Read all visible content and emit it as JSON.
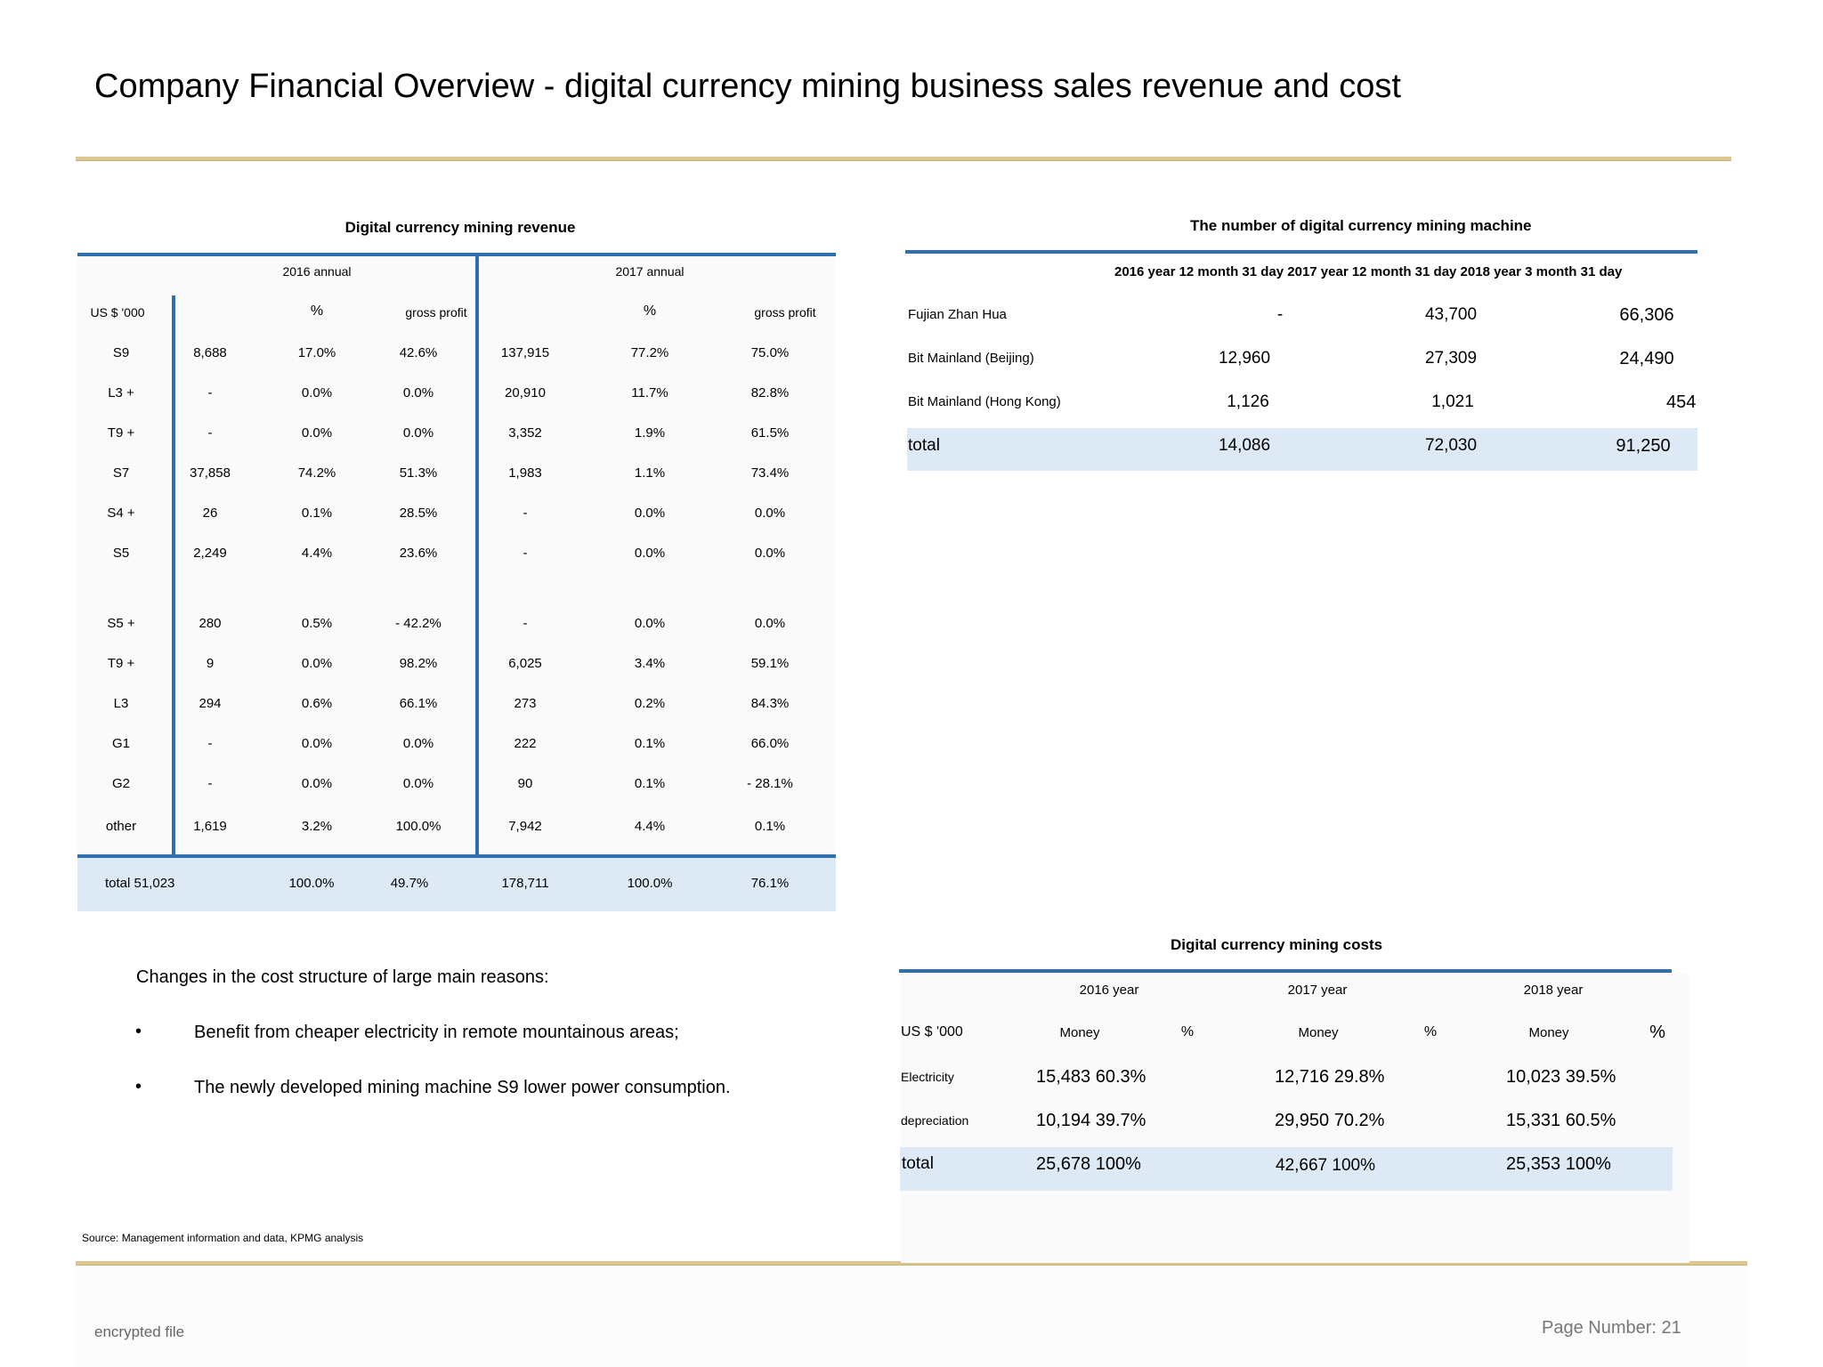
{
  "title": "Company Financial Overview - digital currency mining business sales revenue and cost",
  "revenue_table": {
    "title": "Digital currency mining revenue",
    "period_2016": "2016 annual",
    "period_2017": "2017 annual",
    "unit": "US $ '000",
    "pct_2016": "%",
    "gp_2016": "gross profit",
    "pct_2017": "%",
    "gp_2017": "gross profit",
    "rows": [
      {
        "model": "S9",
        "v16": "8,688",
        "p16": "17.0%",
        "g16": "42.6%",
        "v17": "137,915",
        "p17": "77.2%",
        "g17": "75.0%"
      },
      {
        "model": "L3 +",
        "v16": "-",
        "p16": "0.0%",
        "g16": "0.0%",
        "v17": "20,910",
        "p17": "11.7%",
        "g17": "82.8%"
      },
      {
        "model": "T9 +",
        "v16": "-",
        "p16": "0.0%",
        "g16": "0.0%",
        "v17": "3,352",
        "p17": "1.9%",
        "g17": "61.5%"
      },
      {
        "model": "S7",
        "v16": "37,858",
        "p16": "74.2%",
        "g16": "51.3%",
        "v17": "1,983",
        "p17": "1.1%",
        "g17": "73.4%"
      },
      {
        "model": "S4 +",
        "v16": "26",
        "p16": "0.1%",
        "g16": "28.5%",
        "v17": "-",
        "p17": "0.0%",
        "g17": "0.0%"
      },
      {
        "model": "S5",
        "v16": "2,249",
        "p16": "4.4%",
        "g16": "23.6%",
        "v17": "-",
        "p17": "0.0%",
        "g17": "0.0%"
      },
      {
        "model": "S5 +",
        "v16": "280",
        "p16": "0.5%",
        "g16": "- 42.2%",
        "v17": "-",
        "p17": "0.0%",
        "g17": "0.0%"
      },
      {
        "model": "T9 +",
        "v16": "9",
        "p16": "0.0%",
        "g16": "98.2%",
        "v17": "6,025",
        "p17": "3.4%",
        "g17": "59.1%"
      },
      {
        "model": "L3",
        "v16": "294",
        "p16": "0.6%",
        "g16": "66.1%",
        "v17": "273",
        "p17": "0.2%",
        "g17": "84.3%"
      },
      {
        "model": "G1",
        "v16": "-",
        "p16": "0.0%",
        "g16": "0.0%",
        "v17": "222",
        "p17": "0.1%",
        "g17": "66.0%"
      },
      {
        "model": "G2",
        "v16": "-",
        "p16": "0.0%",
        "g16": "0.0%",
        "v17": "90",
        "p17": "0.1%",
        "g17": "- 28.1%"
      },
      {
        "model": "other",
        "v16": "1,619",
        "p16": "3.2%",
        "g16": "100.0%",
        "v17": "7,942",
        "p17": "4.4%",
        "g17": "0.1%"
      }
    ],
    "total": {
      "label": "total 51,023",
      "p16": "100.0%",
      "g16": "49.7%",
      "v17": "178,711",
      "p17": "100.0%",
      "g17": "76.1%"
    }
  },
  "machines_table": {
    "title": "The number of digital currency mining machine",
    "header": "2016 year 12 month 31 day 2017 year 12 month 31 day 2018 year 3 month 31 day",
    "rows": [
      {
        "name": "Fujian Zhan Hua",
        "a": "-",
        "b": "43,700",
        "c": "66,306"
      },
      {
        "name": "Bit Mainland (Beijing)",
        "a": "12,960",
        "b": "27,309",
        "c": "24,490"
      },
      {
        "name": "Bit Mainland (Hong Kong)",
        "a": "1,126",
        "b": "1,021",
        "c": "454"
      }
    ],
    "total": {
      "name": "total",
      "a": "14,086",
      "b": "72,030",
      "c": "91,250"
    }
  },
  "costs_table": {
    "title": "Digital currency mining costs",
    "y2016": "2016 year",
    "y2017": "2017 year",
    "y2018": "2018 year",
    "unit": "US $ '000",
    "money": "Money",
    "pct": "%",
    "rows": [
      {
        "name": "Electricity",
        "a": "15,483 60.3%",
        "b": "12,716 29.8%",
        "c": "10,023 39.5%"
      },
      {
        "name": "depreciation",
        "a": "10,194 39.7%",
        "b": "29,950 70.2%",
        "c": "15,331 60.5%"
      }
    ],
    "total": {
      "name": "total",
      "a": "25,678 100%",
      "b": "42,667 100%",
      "c": "25,353 100%"
    }
  },
  "notes": {
    "heading": "Changes in the cost structure of large main reasons:",
    "bullet_char": "•",
    "bullets": [
      "Benefit from cheaper electricity in remote mountainous areas;",
      "The newly developed mining machine S9 lower power consumption."
    ]
  },
  "source": "Source: Management information and data, KPMG analysis",
  "footer": {
    "left": "encrypted file",
    "page_number": "Page Number: 21"
  }
}
